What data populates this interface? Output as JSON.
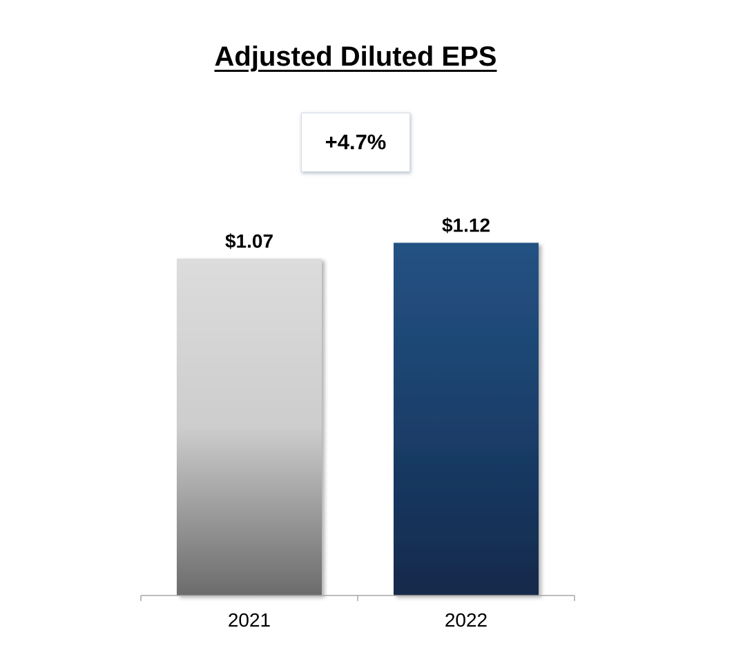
{
  "chart_data": {
    "type": "bar",
    "title": "Adjusted Diluted EPS",
    "categories": [
      "2021",
      "2022"
    ],
    "values": [
      1.07,
      1.12
    ],
    "data_labels": [
      "$1.07",
      "$1.12"
    ],
    "annotation": "+4.7%",
    "xlabel": "",
    "ylabel": "",
    "ylim": [
      0,
      1.2
    ],
    "grid": false,
    "legend": "none",
    "bar_colors": [
      {
        "top": "#dcdcdc",
        "middle": "#cdcdcd",
        "bottom": "#6b6b6b"
      },
      {
        "top": "#235283",
        "middle": "#1b3f6b",
        "bottom": "#12294b"
      }
    ],
    "axis_color": "#a6a6a6"
  }
}
